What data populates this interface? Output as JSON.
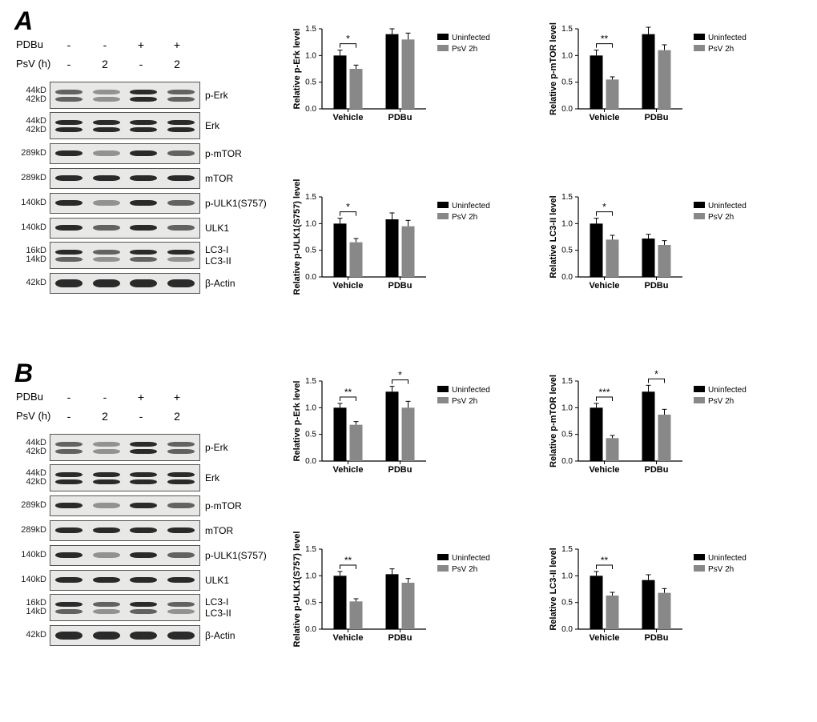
{
  "panels": {
    "A": {
      "label": "A",
      "conditions": {
        "row1_label": "PDBu",
        "row2_label": "PsV (h)",
        "row1_vals": [
          "-",
          "-",
          "+",
          "+"
        ],
        "row2_vals": [
          "-",
          "2",
          "-",
          "2"
        ]
      },
      "blots": [
        {
          "mw": "44kD\n42kD",
          "label": "p-Erk",
          "lanes": [
            [
              "m",
              "m"
            ],
            [
              "f",
              "f"
            ],
            [
              "s",
              "s"
            ],
            [
              "m",
              "m"
            ]
          ],
          "tall": true
        },
        {
          "mw": "44kD\n42kD",
          "label": "Erk",
          "lanes": [
            [
              "s",
              "s"
            ],
            [
              "s",
              "s"
            ],
            [
              "s",
              "s"
            ],
            [
              "s",
              "s"
            ]
          ],
          "tall": true
        },
        {
          "mw": "289kD",
          "label": "p-mTOR",
          "lanes": [
            [
              "s"
            ],
            [
              "f"
            ],
            [
              "s"
            ],
            [
              "m"
            ]
          ]
        },
        {
          "mw": "289kD",
          "label": "mTOR",
          "lanes": [
            [
              "s"
            ],
            [
              "s"
            ],
            [
              "s"
            ],
            [
              "s"
            ]
          ]
        },
        {
          "mw": "140kD",
          "label": "p-ULK1(S757)",
          "lanes": [
            [
              "s"
            ],
            [
              "f"
            ],
            [
              "s"
            ],
            [
              "m"
            ]
          ]
        },
        {
          "mw": "140kD",
          "label": "ULK1",
          "lanes": [
            [
              "s"
            ],
            [
              "m"
            ],
            [
              "s"
            ],
            [
              "m"
            ]
          ]
        },
        {
          "mw": "16kD\n14kD",
          "label": "LC3-I\nLC3-II",
          "lanes": [
            [
              "s",
              "m"
            ],
            [
              "m",
              "f"
            ],
            [
              "s",
              "m"
            ],
            [
              "s",
              "f"
            ]
          ],
          "tall": true
        },
        {
          "mw": "42kD",
          "label": "β-Actin",
          "lanes": [
            [
              "t"
            ],
            [
              "t"
            ],
            [
              "t"
            ],
            [
              "t"
            ]
          ]
        }
      ],
      "charts": [
        {
          "title": "Relative p-Erk level",
          "pos": "tl",
          "ymax": 1.5,
          "ytick": 0.5,
          "groups": [
            {
              "g": "Vehicle",
              "u": 1.0,
              "p": 0.75,
              "ue": 0.1,
              "pe": 0.07,
              "sig": "*"
            },
            {
              "g": "PDBu",
              "u": 1.4,
              "p": 1.3,
              "ue": 0.1,
              "pe": 0.12
            }
          ]
        },
        {
          "title": "Relative p-mTOR level",
          "pos": "tr",
          "ymax": 1.5,
          "ytick": 0.5,
          "groups": [
            {
              "g": "Vehicle",
              "u": 1.0,
              "p": 0.55,
              "ue": 0.1,
              "pe": 0.05,
              "sig": "**"
            },
            {
              "g": "PDBu",
              "u": 1.4,
              "p": 1.1,
              "ue": 0.13,
              "pe": 0.1
            }
          ]
        },
        {
          "title": "Relative p-ULK1(S757) level",
          "pos": "bl",
          "ymax": 1.5,
          "ytick": 0.5,
          "groups": [
            {
              "g": "Vehicle",
              "u": 1.0,
              "p": 0.65,
              "ue": 0.1,
              "pe": 0.07,
              "sig": "*"
            },
            {
              "g": "PDBu",
              "u": 1.08,
              "p": 0.95,
              "ue": 0.12,
              "pe": 0.11
            }
          ]
        },
        {
          "title": "Relative LC3-II level",
          "pos": "br",
          "ymax": 1.5,
          "ytick": 0.5,
          "groups": [
            {
              "g": "Vehicle",
              "u": 1.0,
              "p": 0.7,
              "ue": 0.1,
              "pe": 0.08,
              "sig": "*"
            },
            {
              "g": "PDBu",
              "u": 0.72,
              "p": 0.6,
              "ue": 0.08,
              "pe": 0.08
            }
          ]
        }
      ]
    },
    "B": {
      "label": "B",
      "conditions": {
        "row1_label": "PDBu",
        "row2_label": "PsV (h)",
        "row1_vals": [
          "-",
          "-",
          "+",
          "+"
        ],
        "row2_vals": [
          "-",
          "2",
          "-",
          "2"
        ]
      },
      "blots": [
        {
          "mw": "44kD\n42kD",
          "label": "p-Erk",
          "lanes": [
            [
              "m",
              "m"
            ],
            [
              "f",
              "f"
            ],
            [
              "s",
              "s"
            ],
            [
              "m",
              "m"
            ]
          ],
          "tall": true
        },
        {
          "mw": "44kD\n42kD",
          "label": "Erk",
          "lanes": [
            [
              "s",
              "s"
            ],
            [
              "s",
              "s"
            ],
            [
              "s",
              "s"
            ],
            [
              "s",
              "s"
            ]
          ],
          "tall": true
        },
        {
          "mw": "289kD",
          "label": "p-mTOR",
          "lanes": [
            [
              "s"
            ],
            [
              "f"
            ],
            [
              "s"
            ],
            [
              "m"
            ]
          ]
        },
        {
          "mw": "289kD",
          "label": "mTOR",
          "lanes": [
            [
              "s"
            ],
            [
              "s"
            ],
            [
              "s"
            ],
            [
              "s"
            ]
          ]
        },
        {
          "mw": "140kD",
          "label": "p-ULK1(S757)",
          "lanes": [
            [
              "s"
            ],
            [
              "f"
            ],
            [
              "s"
            ],
            [
              "m"
            ]
          ]
        },
        {
          "mw": "140kD",
          "label": "ULK1",
          "lanes": [
            [
              "s"
            ],
            [
              "s"
            ],
            [
              "s"
            ],
            [
              "s"
            ]
          ]
        },
        {
          "mw": "16kD\n14kD",
          "label": "LC3-I\nLC3-II",
          "lanes": [
            [
              "s",
              "m"
            ],
            [
              "m",
              "f"
            ],
            [
              "s",
              "m"
            ],
            [
              "m",
              "f"
            ]
          ],
          "tall": true
        },
        {
          "mw": "42kD",
          "label": "β-Actin",
          "lanes": [
            [
              "t"
            ],
            [
              "t"
            ],
            [
              "t"
            ],
            [
              "t"
            ]
          ]
        }
      ],
      "charts": [
        {
          "title": "Relative p-Erk level",
          "pos": "tl",
          "ymax": 1.5,
          "ytick": 0.5,
          "groups": [
            {
              "g": "Vehicle",
              "u": 1.0,
              "p": 0.68,
              "ue": 0.08,
              "pe": 0.06,
              "sig": "**"
            },
            {
              "g": "PDBu",
              "u": 1.3,
              "p": 1.0,
              "ue": 0.1,
              "pe": 0.12,
              "sig": "*"
            }
          ]
        },
        {
          "title": "Relative p-mTOR level",
          "pos": "tr",
          "ymax": 1.5,
          "ytick": 0.5,
          "groups": [
            {
              "g": "Vehicle",
              "u": 1.0,
              "p": 0.43,
              "ue": 0.08,
              "pe": 0.05,
              "sig": "***"
            },
            {
              "g": "PDBu",
              "u": 1.3,
              "p": 0.87,
              "ue": 0.12,
              "pe": 0.1,
              "sig": "*"
            }
          ]
        },
        {
          "title": "Relative p-ULK1(S757) level",
          "pos": "bl",
          "ymax": 1.5,
          "ytick": 0.5,
          "groups": [
            {
              "g": "Vehicle",
              "u": 1.0,
              "p": 0.52,
              "ue": 0.08,
              "pe": 0.05,
              "sig": "**"
            },
            {
              "g": "PDBu",
              "u": 1.03,
              "p": 0.87,
              "ue": 0.1,
              "pe": 0.08
            }
          ]
        },
        {
          "title": "Relative LC3-II level",
          "pos": "br",
          "ymax": 1.5,
          "ytick": 0.5,
          "groups": [
            {
              "g": "Vehicle",
              "u": 1.0,
              "p": 0.63,
              "ue": 0.08,
              "pe": 0.06,
              "sig": "**"
            },
            {
              "g": "PDBu",
              "u": 0.92,
              "p": 0.68,
              "ue": 0.1,
              "pe": 0.08
            }
          ]
        }
      ]
    }
  },
  "legend": {
    "uninfected": "Uninfected",
    "psv": "PsV 2h"
  },
  "colors": {
    "uninfected": "#000000",
    "psv": "#888888",
    "axis": "#000000",
    "bg": "#ffffff",
    "blot_bg": "#e8e8e6",
    "band": "#2a2a2a"
  }
}
